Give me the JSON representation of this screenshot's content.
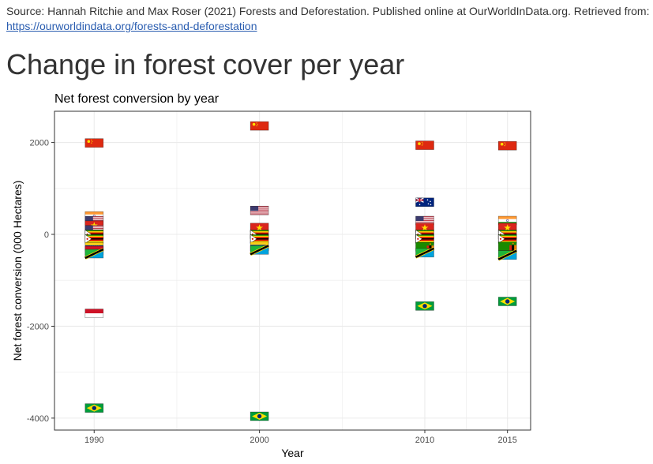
{
  "source": {
    "text": "Source: Hannah Ritchie and Max Roser (2021) Forests and Deforestation. Published online at OurWorldInData.org. Retrieved from:",
    "link_text": "https://ourworldindata.org/forests-and-deforestation"
  },
  "heading": "Change in forest cover per year",
  "colors": {
    "china": "#de2910",
    "china_star": "#ffde00",
    "brazil": "#009c3b",
    "brazil_diamond": "#ffdf00",
    "brazil_globe": "#002776",
    "usa_red": "#b22234",
    "usa_blue": "#3c3b6e",
    "australia_blue": "#00247d",
    "vietnam": "#da251d",
    "indonesia_red": "#ce1126",
    "zimbabwe_green": "#319208",
    "zimbabwe_yellow": "#ffd200",
    "tanzania_green": "#1eb53a",
    "tanzania_blue": "#00a3dd",
    "venezuela_yellow": "#fcd116",
    "venezuela_blue": "#00247d",
    "zambia_green": "#198a00",
    "india_saffron": "#ff9933",
    "gridline": "#ebebeb",
    "panel_border": "#333333"
  },
  "chart_data": {
    "type": "scatter",
    "title": "Net forest conversion by year",
    "xlabel": "Year",
    "ylabel": "Net forest conversion (000 Hectares)",
    "x_ticks": [
      1990,
      2000,
      2010,
      2015
    ],
    "y_ticks": [
      2000,
      0,
      -2000,
      -4000
    ],
    "xlim": [
      1987.6,
      2016.4
    ],
    "ylim": [
      -4260,
      2680
    ],
    "marker": "country-flag",
    "points": [
      {
        "x": 1990,
        "y": 1990,
        "flag": "china"
      },
      {
        "x": 1990,
        "y": 400,
        "flag": "india"
      },
      {
        "x": 1990,
        "y": 300,
        "flag": "usa"
      },
      {
        "x": 1990,
        "y": 200,
        "flag": "vietnam"
      },
      {
        "x": 1990,
        "y": 100,
        "flag": "usa"
      },
      {
        "x": 1990,
        "y": 0,
        "flag": "zimbabwe"
      },
      {
        "x": 1990,
        "y": -100,
        "flag": "zimbabwe"
      },
      {
        "x": 1990,
        "y": -270,
        "flag": "venezuela"
      },
      {
        "x": 1990,
        "y": -350,
        "flag": "indonesia"
      },
      {
        "x": 1990,
        "y": -420,
        "flag": "tanzania"
      },
      {
        "x": 1990,
        "y": -1720,
        "flag": "indonesia"
      },
      {
        "x": 1990,
        "y": -3780,
        "flag": "brazil"
      },
      {
        "x": 2000,
        "y": 2360,
        "flag": "china"
      },
      {
        "x": 2000,
        "y": 520,
        "flag": "usa"
      },
      {
        "x": 2000,
        "y": 150,
        "flag": "vietnam"
      },
      {
        "x": 2000,
        "y": 0,
        "flag": "zimbabwe"
      },
      {
        "x": 2000,
        "y": -100,
        "flag": "zimbabwe"
      },
      {
        "x": 2000,
        "y": -260,
        "flag": "venezuela"
      },
      {
        "x": 2000,
        "y": -340,
        "flag": "tanzania"
      },
      {
        "x": 2000,
        "y": -3960,
        "flag": "brazil"
      },
      {
        "x": 2010,
        "y": 1940,
        "flag": "china"
      },
      {
        "x": 2010,
        "y": 700,
        "flag": "australia"
      },
      {
        "x": 2010,
        "y": 300,
        "flag": "usa"
      },
      {
        "x": 2010,
        "y": 150,
        "flag": "vietnam"
      },
      {
        "x": 2010,
        "y": 0,
        "flag": "zimbabwe"
      },
      {
        "x": 2010,
        "y": -100,
        "flag": "zimbabwe"
      },
      {
        "x": 2010,
        "y": -270,
        "flag": "zambia"
      },
      {
        "x": 2010,
        "y": -400,
        "flag": "tanzania"
      },
      {
        "x": 2010,
        "y": -1560,
        "flag": "brazil"
      },
      {
        "x": 2015,
        "y": 1930,
        "flag": "china"
      },
      {
        "x": 2015,
        "y": 300,
        "flag": "india"
      },
      {
        "x": 2015,
        "y": 150,
        "flag": "vietnam"
      },
      {
        "x": 2015,
        "y": 0,
        "flag": "zimbabwe"
      },
      {
        "x": 2015,
        "y": -100,
        "flag": "zimbabwe"
      },
      {
        "x": 2015,
        "y": -260,
        "flag": "zambia"
      },
      {
        "x": 2015,
        "y": -450,
        "flag": "tanzania"
      },
      {
        "x": 2015,
        "y": -1460,
        "flag": "brazil"
      }
    ]
  }
}
